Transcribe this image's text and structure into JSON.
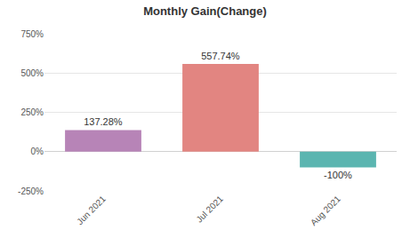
{
  "chart_data": {
    "type": "bar",
    "title": "Monthly Gain(Change)",
    "categories": [
      "Jun 2021",
      "Jul 2021",
      "Aug 2021"
    ],
    "values": [
      137.28,
      557.74,
      -100
    ],
    "value_labels": [
      "137.28%",
      "557.74%",
      "-100%"
    ],
    "data_labels": true,
    "colors": [
      "#b784b7",
      "#e28581",
      "#5bb5b0"
    ],
    "ylim": [
      -250,
      750
    ],
    "yticks": [
      {
        "value": -250,
        "label": "-250%"
      },
      {
        "value": 0,
        "label": "0%"
      },
      {
        "value": 250,
        "label": "250%"
      },
      {
        "value": 500,
        "label": "500%"
      },
      {
        "value": 750,
        "label": "750%"
      }
    ],
    "grid": true
  }
}
